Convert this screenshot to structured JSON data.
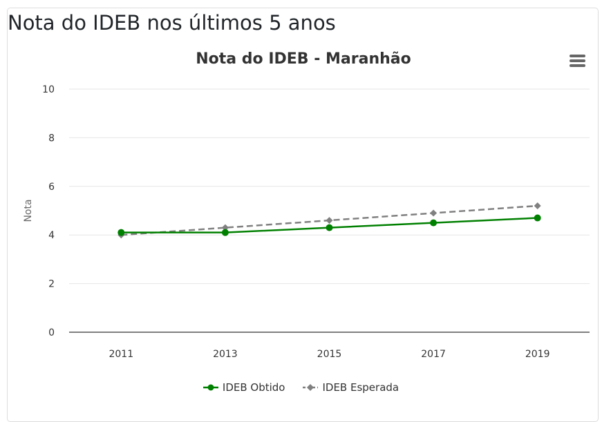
{
  "page": {
    "title": "Nota do IDEB nos últimos 5 anos"
  },
  "menu": {
    "icon": "hamburger-menu-icon"
  },
  "chart_data": {
    "type": "line",
    "title": "Nota do IDEB - Maranhão",
    "xlabel": "",
    "ylabel": "Nota",
    "categories": [
      "2011",
      "2013",
      "2015",
      "2017",
      "2019"
    ],
    "ylim": [
      0,
      10
    ],
    "yticks": [
      "0",
      "2",
      "4",
      "6",
      "8",
      "10"
    ],
    "grid": true,
    "legend_position": "bottom-center",
    "series": [
      {
        "name": "IDEB Obtido",
        "values": [
          4.1,
          4.1,
          4.3,
          4.5,
          4.7
        ],
        "color": "#008000",
        "line_style": "solid",
        "marker": "circle"
      },
      {
        "name": "IDEB Esperada",
        "values": [
          4.0,
          4.3,
          4.6,
          4.9,
          5.2
        ],
        "color": "#808080",
        "line_style": "dashed",
        "marker": "diamond"
      }
    ]
  }
}
